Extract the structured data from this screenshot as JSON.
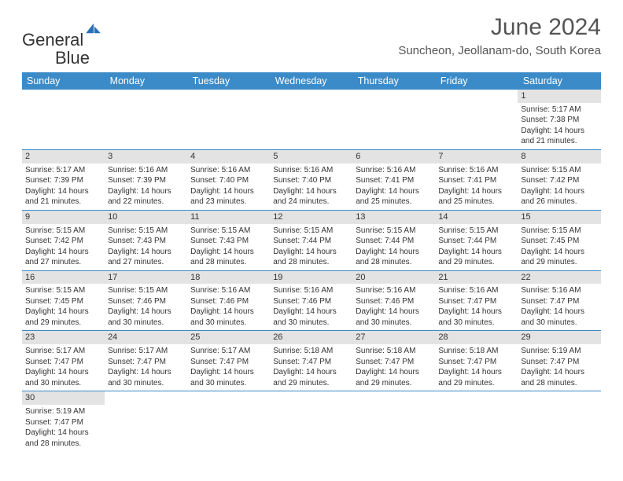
{
  "logo": {
    "text1": "General",
    "text2": "Blue",
    "text1_color": "#333333",
    "text2_color": "#2a6fb5",
    "icon_fill": "#2a6fb5"
  },
  "title": "June 2024",
  "location": "Suncheon, Jeollanam-do, South Korea",
  "header_bg": "#3b8bc9",
  "header_fg": "#ffffff",
  "daynum_bg": "#e3e3e3",
  "border_color": "#3b8bc9",
  "body_bg": "#ffffff",
  "text_color": "#333333",
  "font_family": "Arial, Helvetica, sans-serif",
  "day_headers": [
    "Sunday",
    "Monday",
    "Tuesday",
    "Wednesday",
    "Thursday",
    "Friday",
    "Saturday"
  ],
  "weeks": [
    [
      {
        "blank": true
      },
      {
        "blank": true
      },
      {
        "blank": true
      },
      {
        "blank": true
      },
      {
        "blank": true
      },
      {
        "blank": true
      },
      {
        "day": "1",
        "sunrise": "5:17 AM",
        "sunset": "7:38 PM",
        "daylight_h": "14",
        "daylight_m": "21"
      }
    ],
    [
      {
        "day": "2",
        "sunrise": "5:17 AM",
        "sunset": "7:39 PM",
        "daylight_h": "14",
        "daylight_m": "21"
      },
      {
        "day": "3",
        "sunrise": "5:16 AM",
        "sunset": "7:39 PM",
        "daylight_h": "14",
        "daylight_m": "22"
      },
      {
        "day": "4",
        "sunrise": "5:16 AM",
        "sunset": "7:40 PM",
        "daylight_h": "14",
        "daylight_m": "23"
      },
      {
        "day": "5",
        "sunrise": "5:16 AM",
        "sunset": "7:40 PM",
        "daylight_h": "14",
        "daylight_m": "24"
      },
      {
        "day": "6",
        "sunrise": "5:16 AM",
        "sunset": "7:41 PM",
        "daylight_h": "14",
        "daylight_m": "25"
      },
      {
        "day": "7",
        "sunrise": "5:16 AM",
        "sunset": "7:41 PM",
        "daylight_h": "14",
        "daylight_m": "25"
      },
      {
        "day": "8",
        "sunrise": "5:15 AM",
        "sunset": "7:42 PM",
        "daylight_h": "14",
        "daylight_m": "26"
      }
    ],
    [
      {
        "day": "9",
        "sunrise": "5:15 AM",
        "sunset": "7:42 PM",
        "daylight_h": "14",
        "daylight_m": "27"
      },
      {
        "day": "10",
        "sunrise": "5:15 AM",
        "sunset": "7:43 PM",
        "daylight_h": "14",
        "daylight_m": "27"
      },
      {
        "day": "11",
        "sunrise": "5:15 AM",
        "sunset": "7:43 PM",
        "daylight_h": "14",
        "daylight_m": "28"
      },
      {
        "day": "12",
        "sunrise": "5:15 AM",
        "sunset": "7:44 PM",
        "daylight_h": "14",
        "daylight_m": "28"
      },
      {
        "day": "13",
        "sunrise": "5:15 AM",
        "sunset": "7:44 PM",
        "daylight_h": "14",
        "daylight_m": "28"
      },
      {
        "day": "14",
        "sunrise": "5:15 AM",
        "sunset": "7:44 PM",
        "daylight_h": "14",
        "daylight_m": "29"
      },
      {
        "day": "15",
        "sunrise": "5:15 AM",
        "sunset": "7:45 PM",
        "daylight_h": "14",
        "daylight_m": "29"
      }
    ],
    [
      {
        "day": "16",
        "sunrise": "5:15 AM",
        "sunset": "7:45 PM",
        "daylight_h": "14",
        "daylight_m": "29"
      },
      {
        "day": "17",
        "sunrise": "5:15 AM",
        "sunset": "7:46 PM",
        "daylight_h": "14",
        "daylight_m": "30"
      },
      {
        "day": "18",
        "sunrise": "5:16 AM",
        "sunset": "7:46 PM",
        "daylight_h": "14",
        "daylight_m": "30"
      },
      {
        "day": "19",
        "sunrise": "5:16 AM",
        "sunset": "7:46 PM",
        "daylight_h": "14",
        "daylight_m": "30"
      },
      {
        "day": "20",
        "sunrise": "5:16 AM",
        "sunset": "7:46 PM",
        "daylight_h": "14",
        "daylight_m": "30"
      },
      {
        "day": "21",
        "sunrise": "5:16 AM",
        "sunset": "7:47 PM",
        "daylight_h": "14",
        "daylight_m": "30"
      },
      {
        "day": "22",
        "sunrise": "5:16 AM",
        "sunset": "7:47 PM",
        "daylight_h": "14",
        "daylight_m": "30"
      }
    ],
    [
      {
        "day": "23",
        "sunrise": "5:17 AM",
        "sunset": "7:47 PM",
        "daylight_h": "14",
        "daylight_m": "30"
      },
      {
        "day": "24",
        "sunrise": "5:17 AM",
        "sunset": "7:47 PM",
        "daylight_h": "14",
        "daylight_m": "30"
      },
      {
        "day": "25",
        "sunrise": "5:17 AM",
        "sunset": "7:47 PM",
        "daylight_h": "14",
        "daylight_m": "30"
      },
      {
        "day": "26",
        "sunrise": "5:18 AM",
        "sunset": "7:47 PM",
        "daylight_h": "14",
        "daylight_m": "29"
      },
      {
        "day": "27",
        "sunrise": "5:18 AM",
        "sunset": "7:47 PM",
        "daylight_h": "14",
        "daylight_m": "29"
      },
      {
        "day": "28",
        "sunrise": "5:18 AM",
        "sunset": "7:47 PM",
        "daylight_h": "14",
        "daylight_m": "29"
      },
      {
        "day": "29",
        "sunrise": "5:19 AM",
        "sunset": "7:47 PM",
        "daylight_h": "14",
        "daylight_m": "28"
      }
    ],
    [
      {
        "day": "30",
        "sunrise": "5:19 AM",
        "sunset": "7:47 PM",
        "daylight_h": "14",
        "daylight_m": "28"
      },
      {
        "blank": true
      },
      {
        "blank": true
      },
      {
        "blank": true
      },
      {
        "blank": true
      },
      {
        "blank": true
      },
      {
        "blank": true
      }
    ]
  ],
  "labels": {
    "sunrise_prefix": "Sunrise: ",
    "sunset_prefix": "Sunset: ",
    "daylight_prefix": "Daylight: ",
    "hours_word": " hours",
    "and_word": "and ",
    "minutes_word": " minutes."
  }
}
